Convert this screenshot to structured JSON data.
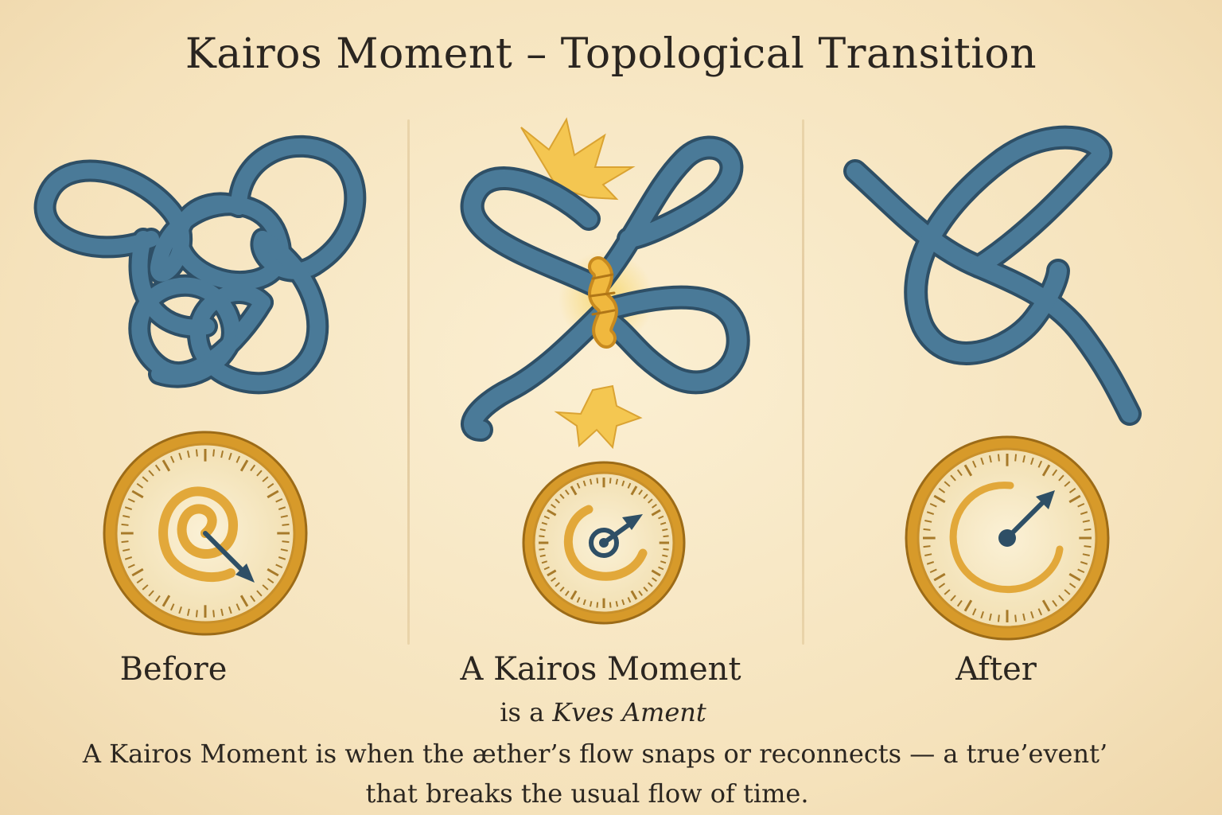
{
  "title": "Kairos Moment – Topological Transition",
  "panels": [
    {
      "label": "Before",
      "state": "tangled knot",
      "icon": "spiral-clock-icon"
    },
    {
      "label": "A Kairos Moment",
      "state": "twist with spark",
      "icon": "snapping-clock-icon"
    },
    {
      "label": "After",
      "state": "simple loop",
      "icon": "open-clock-icon"
    }
  ],
  "subtitle": {
    "prefix": "is a",
    "italic": "Kves Ament"
  },
  "caption": {
    "line1": "A Kairos Moment is when the æther’s flow snaps or reconnects — a true’event’",
    "line2": "that breaks the usual flow of time."
  },
  "colors": {
    "tube": "#4a7a98",
    "tube_outline": "#2e4f66",
    "gold": "#e2a83a",
    "spark": "#f4c54b",
    "background": "#f6e6c2"
  }
}
